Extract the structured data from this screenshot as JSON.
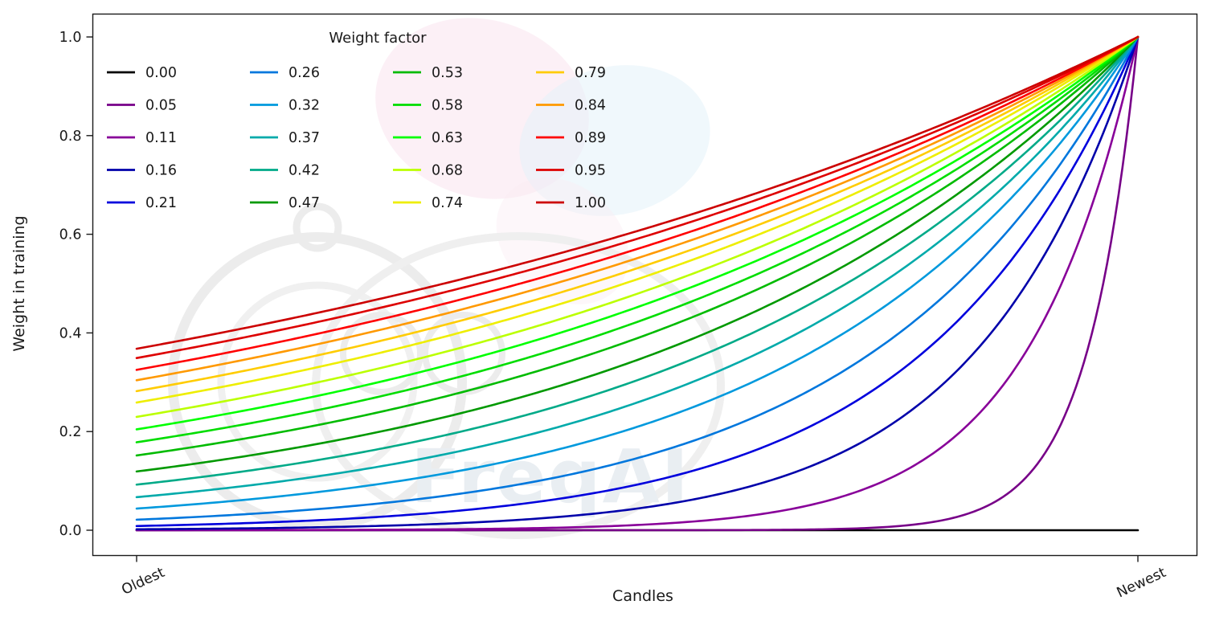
{
  "watermark": {
    "text": "FreqAI"
  },
  "chart_data": {
    "type": "line",
    "title": "",
    "xlabel": "Candles",
    "ylabel": "Weight in training",
    "grid": false,
    "legend_title": "Weight factor",
    "legend_layout": "upper left, 4 columns x 5 rows, no frame",
    "ylim": [
      -0.05,
      1.05
    ],
    "yticks": [
      {
        "label": "0.0",
        "value": 0.0
      },
      {
        "label": "0.2",
        "value": 0.2
      },
      {
        "label": "0.4",
        "value": 0.4
      },
      {
        "label": "0.6",
        "value": 0.6
      },
      {
        "label": "0.8",
        "value": 0.8
      },
      {
        "label": "1.0",
        "value": 1.0
      }
    ],
    "xticks": [
      {
        "label": "Oldest",
        "pos": 0
      },
      {
        "label": "Newest",
        "pos": 1
      }
    ],
    "x_domain": "candle index normalized, 0 = Oldest, 1 = Newest",
    "formula": "weight(x) = exp(-(1 - x) / factor); factor = 0 gives a flat line at 0",
    "x_samples": [
      0,
      0.25,
      0.5,
      0.75,
      1
    ],
    "series": [
      {
        "label": "0.00",
        "factor": 0.0,
        "color": "#000000",
        "y": [
          0,
          0,
          0,
          0,
          0
        ]
      },
      {
        "label": "0.05",
        "factor": 0.05,
        "color": "#770088",
        "y": [
          0,
          0,
          0,
          0.007,
          1
        ]
      },
      {
        "label": "0.11",
        "factor": 0.11,
        "color": "#880099",
        "y": [
          0.0001,
          0.001,
          0.011,
          0.103,
          1
        ]
      },
      {
        "label": "0.16",
        "factor": 0.16,
        "color": "#0000aa",
        "y": [
          0.002,
          0.009,
          0.044,
          0.21,
          1
        ]
      },
      {
        "label": "0.21",
        "factor": 0.21,
        "color": "#0000dd",
        "y": [
          0.009,
          0.028,
          0.092,
          0.304,
          1
        ]
      },
      {
        "label": "0.26",
        "factor": 0.26,
        "color": "#0077dd",
        "y": [
          0.021,
          0.056,
          0.146,
          0.382,
          1
        ]
      },
      {
        "label": "0.32",
        "factor": 0.32,
        "color": "#0099dd",
        "y": [
          0.044,
          0.096,
          0.21,
          0.458,
          1
        ]
      },
      {
        "label": "0.37",
        "factor": 0.37,
        "color": "#00aaaa",
        "y": [
          0.067,
          0.132,
          0.259,
          0.509,
          1
        ]
      },
      {
        "label": "0.42",
        "factor": 0.42,
        "color": "#00aa88",
        "y": [
          0.092,
          0.168,
          0.304,
          0.552,
          1
        ]
      },
      {
        "label": "0.47",
        "factor": 0.47,
        "color": "#009900",
        "y": [
          0.119,
          0.203,
          0.345,
          0.587,
          1
        ]
      },
      {
        "label": "0.53",
        "factor": 0.53,
        "color": "#00bb00",
        "y": [
          0.152,
          0.243,
          0.389,
          0.624,
          1
        ]
      },
      {
        "label": "0.58",
        "factor": 0.58,
        "color": "#00dd00",
        "y": [
          0.178,
          0.274,
          0.422,
          0.65,
          1
        ]
      },
      {
        "label": "0.63",
        "factor": 0.63,
        "color": "#00ff00",
        "y": [
          0.205,
          0.304,
          0.452,
          0.672,
          1
        ]
      },
      {
        "label": "0.68",
        "factor": 0.68,
        "color": "#bbff00",
        "y": [
          0.23,
          0.332,
          0.479,
          0.692,
          1
        ]
      },
      {
        "label": "0.74",
        "factor": 0.74,
        "color": "#eeee00",
        "y": [
          0.259,
          0.363,
          0.509,
          0.713,
          1
        ]
      },
      {
        "label": "0.79",
        "factor": 0.79,
        "color": "#ffcc00",
        "y": [
          0.282,
          0.387,
          0.531,
          0.729,
          1
        ]
      },
      {
        "label": "0.84",
        "factor": 0.84,
        "color": "#ff9900",
        "y": [
          0.304,
          0.409,
          0.551,
          0.742,
          1
        ]
      },
      {
        "label": "0.89",
        "factor": 0.89,
        "color": "#ff0000",
        "y": [
          0.325,
          0.43,
          0.57,
          0.755,
          1
        ]
      },
      {
        "label": "0.95",
        "factor": 0.95,
        "color": "#dd0000",
        "y": [
          0.349,
          0.454,
          0.591,
          0.769,
          1
        ]
      },
      {
        "label": "1.00",
        "factor": 1.0,
        "color": "#cc0000",
        "y": [
          0.368,
          0.472,
          0.607,
          0.779,
          1
        ]
      }
    ]
  }
}
